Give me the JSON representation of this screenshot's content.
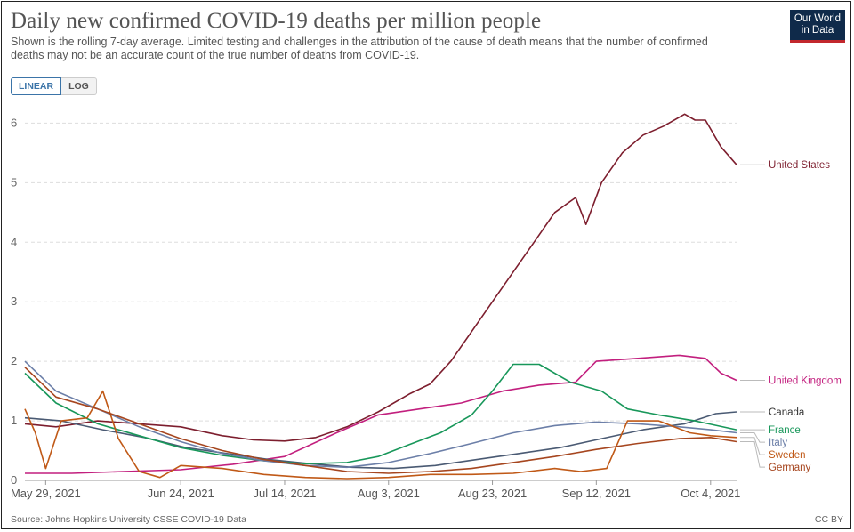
{
  "title": "Daily new confirmed COVID-19 deaths per million people",
  "subtitle": "Shown is the rolling 7-day average. Limited testing and challenges in the attribution of the cause of death means that the number of confirmed deaths may not be an accurate count of the true number of deaths from COVID-19.",
  "logo": {
    "line1": "Our World",
    "line2": "in Data"
  },
  "toggle": {
    "linear": "LINEAR",
    "log": "LOG",
    "selected": "LINEAR"
  },
  "source": "Source: Johns Hopkins University CSSE COVID-19 Data",
  "license": "CC BY",
  "chart_data": {
    "type": "line",
    "x_start": "May 25, 2021",
    "x_end": "Oct 9, 2021",
    "ylim": [
      0,
      6.2
    ],
    "y_ticks": [
      0,
      1,
      2,
      3,
      4,
      5,
      6
    ],
    "x_ticks": [
      {
        "date": "2021-05-29",
        "label": "May 29, 2021"
      },
      {
        "date": "2021-06-24",
        "label": "Jun 24, 2021"
      },
      {
        "date": "2021-07-14",
        "label": "Jul 14, 2021"
      },
      {
        "date": "2021-08-03",
        "label": "Aug 3, 2021"
      },
      {
        "date": "2021-08-23",
        "label": "Aug 23, 2021"
      },
      {
        "date": "2021-09-12",
        "label": "Sep 12, 2021"
      },
      {
        "date": "2021-10-04",
        "label": "Oct 4, 2021"
      }
    ],
    "grid": "horizontal dashed",
    "legend": "right, labels at line ends",
    "series": [
      {
        "name": "United States",
        "color": "#7d1e2e",
        "points": [
          [
            "2021-05-25",
            0.95
          ],
          [
            "2021-05-31",
            0.9
          ],
          [
            "2021-06-08",
            1.0
          ],
          [
            "2021-06-16",
            0.95
          ],
          [
            "2021-06-24",
            0.9
          ],
          [
            "2021-07-02",
            0.75
          ],
          [
            "2021-07-08",
            0.68
          ],
          [
            "2021-07-14",
            0.66
          ],
          [
            "2021-07-20",
            0.72
          ],
          [
            "2021-07-26",
            0.9
          ],
          [
            "2021-08-01",
            1.15
          ],
          [
            "2021-08-07",
            1.45
          ],
          [
            "2021-08-11",
            1.62
          ],
          [
            "2021-08-15",
            2.0
          ],
          [
            "2021-08-19",
            2.5
          ],
          [
            "2021-08-23",
            3.0
          ],
          [
            "2021-08-27",
            3.5
          ],
          [
            "2021-08-31",
            4.0
          ],
          [
            "2021-09-04",
            4.5
          ],
          [
            "2021-09-08",
            4.75
          ],
          [
            "2021-09-10",
            4.3
          ],
          [
            "2021-09-13",
            5.0
          ],
          [
            "2021-09-17",
            5.5
          ],
          [
            "2021-09-21",
            5.8
          ],
          [
            "2021-09-25",
            5.95
          ],
          [
            "2021-09-29",
            6.15
          ],
          [
            "2021-10-01",
            6.05
          ],
          [
            "2021-10-03",
            6.05
          ],
          [
            "2021-10-06",
            5.6
          ],
          [
            "2021-10-09",
            5.3
          ]
        ]
      },
      {
        "name": "United Kingdom",
        "color": "#c21f7e",
        "points": [
          [
            "2021-05-25",
            0.12
          ],
          [
            "2021-06-03",
            0.12
          ],
          [
            "2021-06-13",
            0.15
          ],
          [
            "2021-06-24",
            0.18
          ],
          [
            "2021-07-04",
            0.27
          ],
          [
            "2021-07-14",
            0.4
          ],
          [
            "2021-07-24",
            0.8
          ],
          [
            "2021-08-01",
            1.1
          ],
          [
            "2021-08-09",
            1.2
          ],
          [
            "2021-08-17",
            1.3
          ],
          [
            "2021-08-25",
            1.5
          ],
          [
            "2021-09-01",
            1.6
          ],
          [
            "2021-09-08",
            1.65
          ],
          [
            "2021-09-12",
            2.0
          ],
          [
            "2021-09-20",
            2.05
          ],
          [
            "2021-09-28",
            2.1
          ],
          [
            "2021-10-03",
            2.05
          ],
          [
            "2021-10-06",
            1.8
          ],
          [
            "2021-10-09",
            1.68
          ]
        ]
      },
      {
        "name": "Canada",
        "color": "#4a5a73",
        "points": [
          [
            "2021-05-25",
            1.05
          ],
          [
            "2021-06-01",
            1.0
          ],
          [
            "2021-06-09",
            0.85
          ],
          [
            "2021-06-17",
            0.72
          ],
          [
            "2021-06-25",
            0.55
          ],
          [
            "2021-07-03",
            0.45
          ],
          [
            "2021-07-11",
            0.35
          ],
          [
            "2021-07-19",
            0.28
          ],
          [
            "2021-07-27",
            0.22
          ],
          [
            "2021-08-04",
            0.2
          ],
          [
            "2021-08-12",
            0.25
          ],
          [
            "2021-08-20",
            0.35
          ],
          [
            "2021-08-28",
            0.45
          ],
          [
            "2021-09-05",
            0.55
          ],
          [
            "2021-09-13",
            0.7
          ],
          [
            "2021-09-21",
            0.85
          ],
          [
            "2021-09-29",
            0.95
          ],
          [
            "2021-10-05",
            1.12
          ],
          [
            "2021-10-09",
            1.15
          ]
        ]
      },
      {
        "name": "France",
        "color": "#18975a",
        "points": [
          [
            "2021-05-25",
            1.8
          ],
          [
            "2021-05-31",
            1.3
          ],
          [
            "2021-06-08",
            0.95
          ],
          [
            "2021-06-16",
            0.75
          ],
          [
            "2021-06-24",
            0.55
          ],
          [
            "2021-07-02",
            0.42
          ],
          [
            "2021-07-10",
            0.33
          ],
          [
            "2021-07-18",
            0.28
          ],
          [
            "2021-07-26",
            0.3
          ],
          [
            "2021-08-01",
            0.4
          ],
          [
            "2021-08-07",
            0.6
          ],
          [
            "2021-08-13",
            0.8
          ],
          [
            "2021-08-19",
            1.1
          ],
          [
            "2021-08-23",
            1.5
          ],
          [
            "2021-08-27",
            1.95
          ],
          [
            "2021-09-01",
            1.95
          ],
          [
            "2021-09-07",
            1.65
          ],
          [
            "2021-09-13",
            1.5
          ],
          [
            "2021-09-18",
            1.2
          ],
          [
            "2021-09-24",
            1.1
          ],
          [
            "2021-10-01",
            1.0
          ],
          [
            "2021-10-09",
            0.85
          ]
        ]
      },
      {
        "name": "Italy",
        "color": "#6c7fa8",
        "points": [
          [
            "2021-05-25",
            2.0
          ],
          [
            "2021-05-31",
            1.5
          ],
          [
            "2021-06-08",
            1.2
          ],
          [
            "2021-06-16",
            0.9
          ],
          [
            "2021-06-24",
            0.65
          ],
          [
            "2021-07-02",
            0.45
          ],
          [
            "2021-07-10",
            0.33
          ],
          [
            "2021-07-18",
            0.25
          ],
          [
            "2021-07-26",
            0.22
          ],
          [
            "2021-08-03",
            0.3
          ],
          [
            "2021-08-11",
            0.45
          ],
          [
            "2021-08-19",
            0.62
          ],
          [
            "2021-08-27",
            0.8
          ],
          [
            "2021-09-04",
            0.92
          ],
          [
            "2021-09-12",
            0.98
          ],
          [
            "2021-09-20",
            0.95
          ],
          [
            "2021-09-28",
            0.9
          ],
          [
            "2021-10-04",
            0.85
          ],
          [
            "2021-10-09",
            0.8
          ]
        ]
      },
      {
        "name": "Sweden",
        "color": "#c05917",
        "points": [
          [
            "2021-05-25",
            1.2
          ],
          [
            "2021-05-27",
            0.8
          ],
          [
            "2021-05-29",
            0.2
          ],
          [
            "2021-06-01",
            1.0
          ],
          [
            "2021-06-06",
            1.05
          ],
          [
            "2021-06-09",
            1.5
          ],
          [
            "2021-06-12",
            0.7
          ],
          [
            "2021-06-16",
            0.15
          ],
          [
            "2021-06-20",
            0.05
          ],
          [
            "2021-06-24",
            0.25
          ],
          [
            "2021-07-02",
            0.2
          ],
          [
            "2021-07-10",
            0.1
          ],
          [
            "2021-07-18",
            0.05
          ],
          [
            "2021-07-26",
            0.03
          ],
          [
            "2021-08-03",
            0.05
          ],
          [
            "2021-08-11",
            0.1
          ],
          [
            "2021-08-19",
            0.1
          ],
          [
            "2021-08-27",
            0.12
          ],
          [
            "2021-09-04",
            0.2
          ],
          [
            "2021-09-09",
            0.15
          ],
          [
            "2021-09-14",
            0.2
          ],
          [
            "2021-09-18",
            1.0
          ],
          [
            "2021-09-24",
            1.0
          ],
          [
            "2021-09-30",
            0.8
          ],
          [
            "2021-10-04",
            0.75
          ],
          [
            "2021-10-09",
            0.72
          ]
        ]
      },
      {
        "name": "Germany",
        "color": "#a6461f",
        "points": [
          [
            "2021-05-25",
            1.9
          ],
          [
            "2021-05-31",
            1.4
          ],
          [
            "2021-06-08",
            1.2
          ],
          [
            "2021-06-16",
            0.95
          ],
          [
            "2021-06-24",
            0.7
          ],
          [
            "2021-07-02",
            0.5
          ],
          [
            "2021-07-10",
            0.35
          ],
          [
            "2021-07-18",
            0.25
          ],
          [
            "2021-07-26",
            0.15
          ],
          [
            "2021-08-03",
            0.12
          ],
          [
            "2021-08-11",
            0.15
          ],
          [
            "2021-08-19",
            0.2
          ],
          [
            "2021-08-27",
            0.3
          ],
          [
            "2021-09-04",
            0.4
          ],
          [
            "2021-09-12",
            0.52
          ],
          [
            "2021-09-20",
            0.62
          ],
          [
            "2021-09-28",
            0.7
          ],
          [
            "2021-10-04",
            0.72
          ],
          [
            "2021-10-09",
            0.65
          ]
        ]
      }
    ],
    "end_labels": [
      {
        "name": "United States",
        "y": 5.3
      },
      {
        "name": "United Kingdom",
        "y": 1.68
      },
      {
        "name": "Canada",
        "y": 1.15
      },
      {
        "name": "France",
        "y": 0.85
      },
      {
        "name": "Italy",
        "y": 0.8
      },
      {
        "name": "Sweden",
        "y": 0.72
      },
      {
        "name": "Germany",
        "y": 0.65
      }
    ]
  }
}
